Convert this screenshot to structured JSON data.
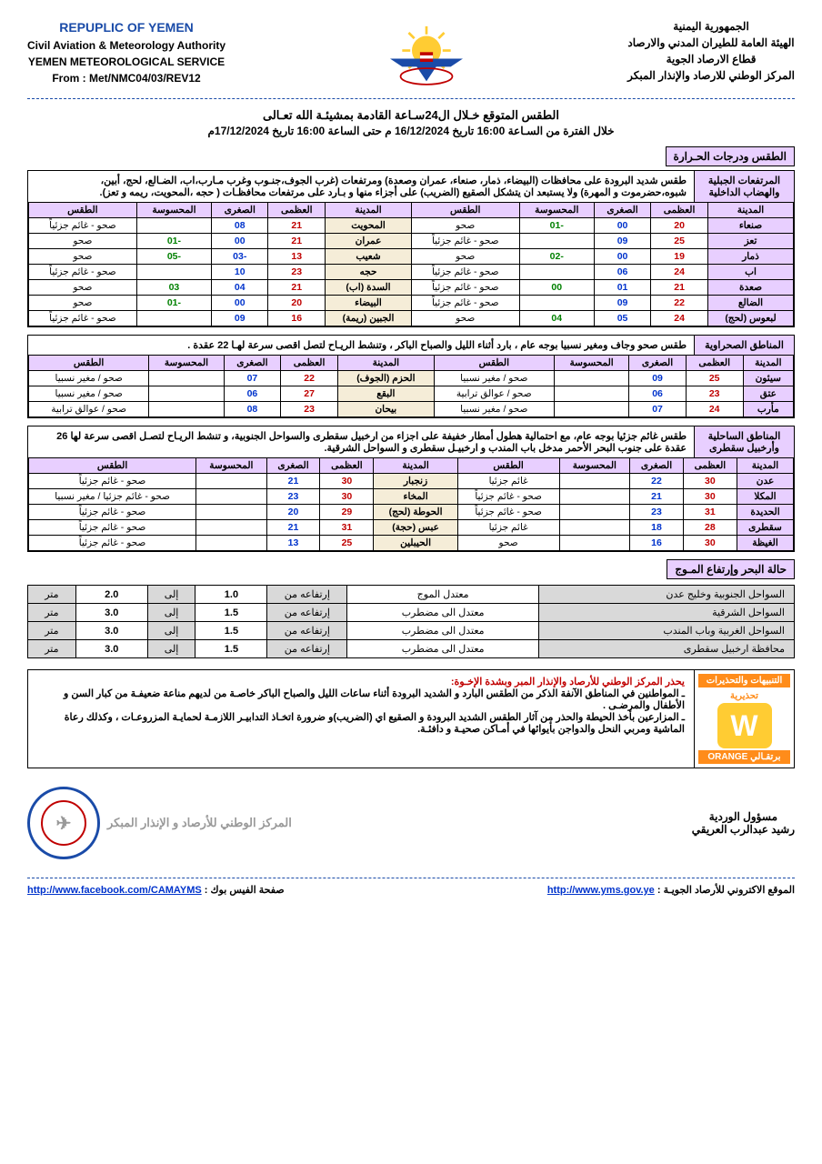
{
  "header": {
    "left": {
      "l1": "REPUPLIC OF YEMEN",
      "l2": "Civil Aviation & Meteorology Authority",
      "l3": "YEMEN METEOROLOGICAL SERVICE",
      "l4": "From : Met/NMC04/03/REV12"
    },
    "right": {
      "l1": "الجمهورية اليمنية",
      "l2": "الهيئة العامة للطيران المدني والارصاد",
      "l3": "قطاع الارصاد الجوية",
      "l4": "المركز الوطني للارصاد والإنذار المبكر"
    }
  },
  "title": {
    "main": "الطقس المتوقع خـلال ال24سـاعة القادمة بمشيئـة الله تعـالى",
    "sub": "خلال الفترة من السـاعة 16:00 تاريخ  16/12/2024 م  حتى الساعة 16:00 تاريخ  17/12/2024م"
  },
  "section1_label": "الطقس ودرجات الحـرارة",
  "block1": {
    "label": "المرتفعات الجبلية والهضاب الداخلية",
    "text": "طقس شديد البرودة على محافظات (البيضاء، ذمار، صنعاء، عمران وصعدة) ومرتفعات (غرب الجوف،جنـوب وغرب مـارب،اب، الضـالع، لحج، أبين، شبوه،حضرموت و المهرة)  ولا يستبعد ان يتشكل الصقيع (الضريب) على أجزاء منها و بـارد على مرتفعات محافظـات ( حجه ،المحويت، ريمه و تعز)."
  },
  "cols": {
    "city": "المدينة",
    "hi": "العظمى",
    "lo": "الصغرى",
    "felt": "المحسوسة",
    "wx": "الطقس"
  },
  "t1": {
    "left": [
      {
        "city": "صنعاء",
        "hi": "20",
        "lo": "00",
        "felt": "-01",
        "wx": "صحو"
      },
      {
        "city": "تعز",
        "hi": "25",
        "lo": "09",
        "felt": "",
        "wx": "صحو - غائم جزئياً"
      },
      {
        "city": "ذمار",
        "hi": "19",
        "lo": "00",
        "felt": "-02",
        "wx": "صحو"
      },
      {
        "city": "اب",
        "hi": "24",
        "lo": "06",
        "felt": "",
        "wx": "صحو - غائم جزئياً"
      },
      {
        "city": "صعدة",
        "hi": "21",
        "lo": "01",
        "felt": "00",
        "wx": "صحو - غائم جزئياً"
      },
      {
        "city": "الضالع",
        "hi": "22",
        "lo": "09",
        "felt": "",
        "wx": "صحو - غائم جزئياً"
      },
      {
        "city": "لبعوس (لحج)",
        "hi": "24",
        "lo": "05",
        "felt": "04",
        "wx": "صحو"
      }
    ],
    "right": [
      {
        "city": "المحويت",
        "hi": "21",
        "lo": "08",
        "felt": "",
        "wx": "صحو - غائم جزئياً"
      },
      {
        "city": "عمران",
        "hi": "21",
        "lo": "00",
        "felt": "-01",
        "wx": "صحو"
      },
      {
        "city": "شعيب",
        "hi": "13",
        "lo": "-03",
        "felt": "-05",
        "wx": "صحو"
      },
      {
        "city": "حجه",
        "hi": "23",
        "lo": "10",
        "felt": "",
        "wx": "صحو - غائم جزئياً"
      },
      {
        "city": "السدة (اب)",
        "hi": "21",
        "lo": "04",
        "felt": "03",
        "wx": "صحو"
      },
      {
        "city": "البيضاء",
        "hi": "20",
        "lo": "00",
        "felt": "-01",
        "wx": "صحو"
      },
      {
        "city": "الجبين (ريمة)",
        "hi": "16",
        "lo": "09",
        "felt": "",
        "wx": "صحو - غائم جزئياً"
      }
    ]
  },
  "block2": {
    "label": "المناطق الصحراوية",
    "text": "طقس صحو وجاف ومغير نسبيا بوجه عام ، بارد أثناء الليل والصباح الباكر ، وتنشط الريـاح لتصل اقصى سرعة لهـا 22 عقدة ."
  },
  "t2": {
    "left": [
      {
        "city": "سيئون",
        "hi": "25",
        "lo": "09",
        "felt": "",
        "wx": "صحو / مغير نسبيا"
      },
      {
        "city": "عتق",
        "hi": "23",
        "lo": "06",
        "felt": "",
        "wx": "صحو / عوالق ترابية"
      },
      {
        "city": "مأرب",
        "hi": "24",
        "lo": "07",
        "felt": "",
        "wx": "صحو / مغير نسبيا"
      }
    ],
    "right": [
      {
        "city": "الحزم (الجوف)",
        "hi": "22",
        "lo": "07",
        "felt": "",
        "wx": "صحو / مغير نسبيا"
      },
      {
        "city": "البقع",
        "hi": "27",
        "lo": "06",
        "felt": "",
        "wx": "صحو / مغير نسبيا"
      },
      {
        "city": "بيحان",
        "hi": "23",
        "lo": "08",
        "felt": "",
        "wx": "صحو / عوالق ترابية"
      }
    ]
  },
  "block3": {
    "label": "المناطق الساحلية وأرخبيل سقطرى",
    "text": "طقس غائم جزئيا بوجه عام، مع احتمالية هطول أمطار خفيفة على اجزاء من  ارخبيل سقطرى والسواحل الجنوبية، و تنشط الريـاح لتصـل  اقصى سرعة لها 26 عقدة على  جنوب البحر الأحمر مدخل باب المندب و ارخبيـل سقطرى و السواحل الشرقية."
  },
  "t3": {
    "left": [
      {
        "city": "عدن",
        "hi": "30",
        "lo": "22",
        "felt": "",
        "wx": "غائم جزئيا"
      },
      {
        "city": "المكلا",
        "hi": "30",
        "lo": "21",
        "felt": "",
        "wx": "صحو - غائم جزئياً"
      },
      {
        "city": "الحديدة",
        "hi": "31",
        "lo": "23",
        "felt": "",
        "wx": "صحو - غائم جزئياً"
      },
      {
        "city": "سقطرى",
        "hi": "28",
        "lo": "18",
        "felt": "",
        "wx": "غائم جزئيا"
      },
      {
        "city": "الغيظة",
        "hi": "30",
        "lo": "16",
        "felt": "",
        "wx": "صحو"
      }
    ],
    "right": [
      {
        "city": "زنجبار",
        "hi": "30",
        "lo": "21",
        "felt": "",
        "wx": "صحو - غائم جزئياً"
      },
      {
        "city": "المخاء",
        "hi": "30",
        "lo": "23",
        "felt": "",
        "wx": "صحو - غائم جزئيا / مغير نسبيا"
      },
      {
        "city": "الحوطة (لحج)",
        "hi": "29",
        "lo": "20",
        "felt": "",
        "wx": "صحو - غائم جزئياً"
      },
      {
        "city": "عبس (حجة)",
        "hi": "31",
        "lo": "21",
        "felt": "",
        "wx": "صحو - غائم جزئياً"
      },
      {
        "city": "الحيبلين",
        "hi": "25",
        "lo": "13",
        "felt": "",
        "wx": "صحو - غائم جزئياً"
      }
    ]
  },
  "sea_label": "حالة البحر وإرتفاع المـوج",
  "sea": {
    "from": "إرتفاعه من",
    "to": "إلى",
    "unit": "متر",
    "rows": [
      {
        "coast": "السواحل الجنوبية وخليج عدن",
        "state": "معتدل الموج",
        "from": "1.0",
        "to": "2.0"
      },
      {
        "coast": "السواحل الشرقية",
        "state": "معتدل الى مضطرب",
        "from": "1.5",
        "to": "3.0"
      },
      {
        "coast": "السواحل الغربية وباب المندب",
        "state": "معتدل الى مضطرب",
        "from": "1.5",
        "to": "3.0"
      },
      {
        "coast": "محافظة ارخبيل سقطرى",
        "state": "معتدل الى مضطرب",
        "from": "1.5",
        "to": "3.0"
      }
    ]
  },
  "warn": {
    "side_top": "التنبيهات والتحذيرات",
    "side_mid": "تحذيرية",
    "side_bot": "برتقـالي ORANGE",
    "lead": "يحذر المركز الوطني للأرصاد والإنذار المبر وبشدة الإخـوة:",
    "l1": "ـ المواطنين في المناطق الآنفة  الذكر من الطقس البارد و الشديد البرودة أثناء ساعات الليل والصباح الباكر خاصـة من لديهم مناعة ضعيفـة من كبار السن و الأطفال والمرضـى .",
    "l2": "ـ المزارعين بأخذ الحيطة والحذر من آثار الطقس الشديد البرودة و الصقيع اي (الضريب)و ضرورة اتخـاذ التدابيـر اللازمـة لحمايـة المزروعـات ، وكذلك رعاة الماشية ومربي النحل والدواجن بأيوائها في أمـاكن صحيـة و دافئـة."
  },
  "sig": {
    "role": "مسؤول الوردية",
    "name": "رشيد عبدالرب العريقي",
    "center": "المركز الوطني للأرصاد و الإنذار المبكر"
  },
  "footer": {
    "r_label": "الموقع الاكتروني للأرصاد الجويـة  :",
    "r_url": "http://www.yms.gov.ye",
    "l_label": "صفحة الفيس بوك  :",
    "l_url": "http://www.facebook.com/CAMAYMS"
  },
  "colors": {
    "purple": "#e8cfff",
    "blue": "#1a4ba8",
    "red": "#c00000",
    "loblue": "#0033cc",
    "green": "#008000",
    "gray": "#d9d9d9",
    "orange": "#ff8c1a",
    "yellow": "#ffcc33"
  }
}
